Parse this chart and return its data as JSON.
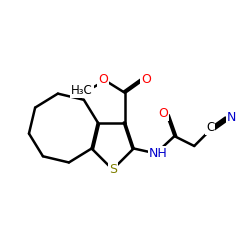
{
  "background_color": "#ffffff",
  "atom_colors": {
    "C": "#000000",
    "N": "#0000cc",
    "O": "#ff0000",
    "S": "#808000",
    "H": "#000000"
  },
  "bond_color": "#000000",
  "bond_width": 1.8,
  "figsize": [
    2.5,
    2.5
  ],
  "dpi": 100
}
